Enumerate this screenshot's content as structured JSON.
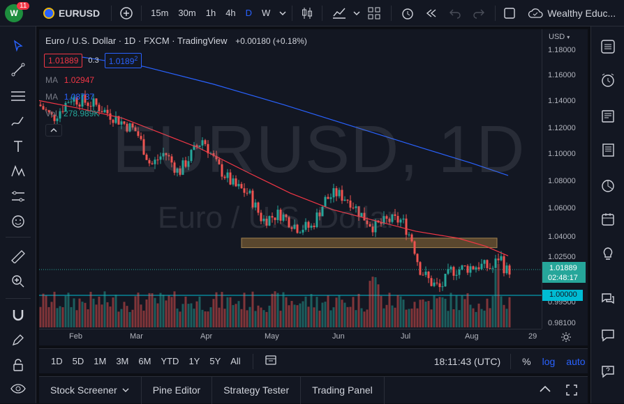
{
  "toolbar": {
    "notification_count": "11",
    "symbol": "EURUSD",
    "timeframes": [
      "15m",
      "30m",
      "1h",
      "4h",
      "D",
      "W"
    ],
    "active_timeframe": "D",
    "account": "Wealthy Educ..."
  },
  "chart": {
    "title": "Euro / U.S. Dollar · 1D · FXCM · TradingView",
    "change": "+0.00180 (+0.18%)",
    "sell_price": "1.01889",
    "spread": "0.3",
    "buy_price": "1.0189",
    "buy_price_sup": "2",
    "ma1_label": "MA",
    "ma1_value": "1.02947",
    "ma2_label": "MA",
    "ma2_value": "1.08737",
    "vol_label": "Vol",
    "vol_value": "278.989K",
    "watermark_big": "EURUSD, 1D",
    "watermark_small": "Euro / U.S. Dollar",
    "currency": "USD",
    "price_ticks": [
      "1.18000",
      "1.16000",
      "1.14000",
      "1.12000",
      "1.10000",
      "1.08000",
      "1.06000",
      "1.04000",
      "1.02500",
      "0.99500",
      "0.98100"
    ],
    "current_price": "1.01889",
    "countdown": "02:48:17",
    "level_price": "1.00000",
    "months": [
      "Feb",
      "Mar",
      "Apr",
      "May",
      "Jun",
      "Jul",
      "Aug",
      "29"
    ]
  },
  "bottombar": {
    "ranges": [
      "1D",
      "5D",
      "1M",
      "3M",
      "6M",
      "YTD",
      "1Y",
      "5Y",
      "All"
    ],
    "clock": "18:11:43 (UTC)",
    "pct": "%",
    "log": "log",
    "auto": "auto"
  },
  "tabs": [
    "Stock Screener",
    "Pine Editor",
    "Strategy Tester",
    "Trading Panel"
  ],
  "colors": {
    "up": "#26a69a",
    "down": "#ef5350",
    "ma_red": "#f23645",
    "ma_blue": "#2962ff",
    "accent": "#2962ff"
  }
}
